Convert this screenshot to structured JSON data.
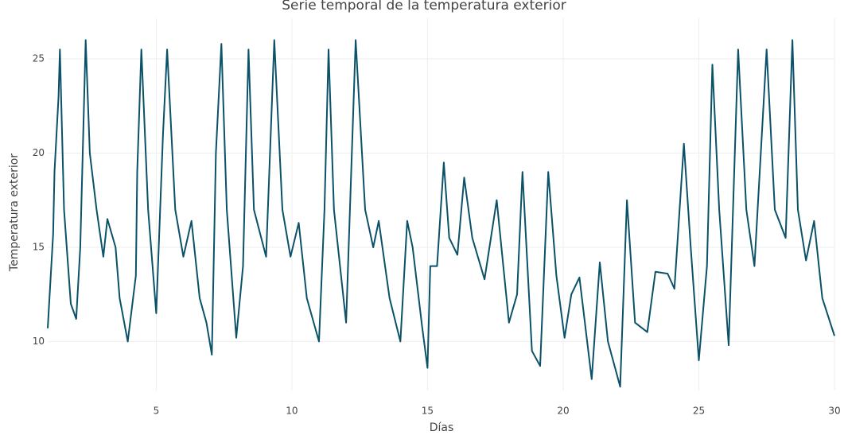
{
  "chart_data": {
    "type": "line",
    "title": "Serie temporal de la temperatura exterior",
    "x_label": "Días",
    "y_label": "Temperatura exterior",
    "color": "#0b5269",
    "grid": true,
    "xlim": [
      1,
      30
    ],
    "ylim": [
      7.4,
      26.1
    ],
    "xticks": [
      5,
      10,
      15,
      20,
      25,
      30
    ],
    "yticks": [
      10,
      15,
      20,
      25
    ],
    "x": [
      1.0,
      1.2,
      1.25,
      1.4,
      1.45,
      1.6,
      1.85,
      2.05,
      2.2,
      2.4,
      2.55,
      2.8,
      3.05,
      3.2,
      3.5,
      3.65,
      3.95,
      4.25,
      4.3,
      4.45,
      4.7,
      5.0,
      5.25,
      5.4,
      5.7,
      6.0,
      6.3,
      6.6,
      6.85,
      7.05,
      7.2,
      7.4,
      7.6,
      7.95,
      8.2,
      8.4,
      8.6,
      9.05,
      9.35,
      9.65,
      9.95,
      10.25,
      10.55,
      11.0,
      11.2,
      11.35,
      11.55,
      12.0,
      12.35,
      12.7,
      13.0,
      13.2,
      13.6,
      14.0,
      14.25,
      14.45,
      14.8,
      15.0,
      15.1,
      15.35,
      15.6,
      15.8,
      16.1,
      16.35,
      16.65,
      17.1,
      17.55,
      18.0,
      18.3,
      18.5,
      18.85,
      19.15,
      19.45,
      19.75,
      20.05,
      20.3,
      20.6,
      21.05,
      21.35,
      21.65,
      22.1,
      22.35,
      22.65,
      23.1,
      23.4,
      23.85,
      24.1,
      24.45,
      24.7,
      25.0,
      25.3,
      25.5,
      25.75,
      26.1,
      26.45,
      26.75,
      27.05,
      27.5,
      27.8,
      28.2,
      28.45,
      28.65,
      28.95,
      29.25,
      29.55,
      30.0
    ],
    "values": [
      10.7,
      15.7,
      19,
      23,
      25.5,
      17,
      12,
      11.2,
      15,
      26,
      20,
      17,
      14.5,
      16.5,
      15,
      12.3,
      10,
      13.5,
      19,
      25.5,
      17,
      11.5,
      21,
      25.5,
      17,
      14.5,
      16.4,
      12.3,
      11,
      9.3,
      20,
      25.8,
      17,
      10.2,
      14,
      25.5,
      17,
      14.5,
      26,
      17,
      14.5,
      16.3,
      12.3,
      10,
      17,
      25.5,
      17,
      11,
      26,
      17,
      15,
      16.4,
      12.3,
      10,
      16.4,
      15,
      10.8,
      8.6,
      14,
      14,
      19.5,
      15.5,
      14.6,
      18.7,
      15.5,
      13.3,
      17.5,
      11,
      12.5,
      19,
      9.5,
      8.7,
      19,
      13.5,
      10.2,
      12.5,
      13.4,
      8,
      14.2,
      10,
      7.6,
      17.5,
      11,
      10.5,
      13.7,
      13.6,
      12.8,
      20.5,
      15,
      9,
      14,
      24.7,
      17,
      9.8,
      25.5,
      17,
      14,
      25.5,
      17,
      15.5,
      26,
      17,
      14.3,
      16.4,
      12.3,
      10.3
    ]
  }
}
